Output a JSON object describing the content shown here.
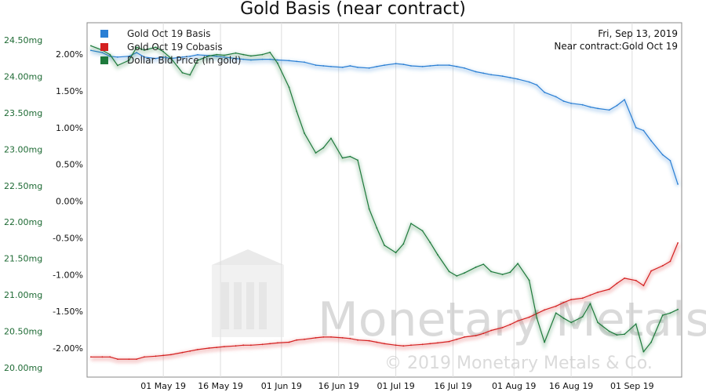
{
  "chart_data": {
    "type": "line",
    "title": "Gold Basis (near contract)",
    "info": {
      "date": "Fri, Sep 13, 2019",
      "contract": "Near contract:Gold Oct 19"
    },
    "x_dates": [
      "2019-04-12",
      "2019-04-15",
      "2019-04-17",
      "2019-04-19",
      "2019-04-22",
      "2019-04-24",
      "2019-04-26",
      "2019-04-29",
      "2019-05-01",
      "2019-05-03",
      "2019-05-06",
      "2019-05-08",
      "2019-05-10",
      "2019-05-13",
      "2019-05-15",
      "2019-05-17",
      "2019-05-20",
      "2019-05-22",
      "2019-05-24",
      "2019-05-27",
      "2019-05-29",
      "2019-05-31",
      "2019-06-03",
      "2019-06-05",
      "2019-06-07",
      "2019-06-10",
      "2019-06-12",
      "2019-06-14",
      "2019-06-17",
      "2019-06-19",
      "2019-06-21",
      "2019-06-24",
      "2019-06-26",
      "2019-06-28",
      "2019-07-01",
      "2019-07-03",
      "2019-07-05",
      "2019-07-08",
      "2019-07-10",
      "2019-07-12",
      "2019-07-15",
      "2019-07-17",
      "2019-07-19",
      "2019-07-22",
      "2019-07-24",
      "2019-07-26",
      "2019-07-29",
      "2019-07-31",
      "2019-08-02",
      "2019-08-05",
      "2019-08-07",
      "2019-08-09",
      "2019-08-12",
      "2019-08-14",
      "2019-08-16",
      "2019-08-19",
      "2019-08-21",
      "2019-08-23",
      "2019-08-26",
      "2019-08-28",
      "2019-08-30",
      "2019-09-02",
      "2019-09-04",
      "2019-09-06",
      "2019-09-09",
      "2019-09-11",
      "2019-09-13"
    ],
    "series": [
      {
        "name": "Gold Oct 19 Basis",
        "color": "#2a7fd4",
        "axis": "right",
        "unit": "%",
        "values": [
          2.05,
          2.02,
          1.97,
          1.96,
          1.97,
          2.02,
          1.96,
          1.94,
          1.96,
          1.94,
          1.96,
          1.97,
          1.99,
          1.98,
          1.97,
          1.96,
          1.94,
          1.93,
          1.92,
          1.93,
          1.93,
          1.92,
          1.91,
          1.9,
          1.89,
          1.85,
          1.84,
          1.83,
          1.82,
          1.84,
          1.82,
          1.81,
          1.83,
          1.85,
          1.87,
          1.86,
          1.84,
          1.83,
          1.84,
          1.85,
          1.85,
          1.83,
          1.81,
          1.76,
          1.74,
          1.72,
          1.7,
          1.68,
          1.66,
          1.62,
          1.58,
          1.48,
          1.42,
          1.36,
          1.33,
          1.31,
          1.28,
          1.26,
          1.24,
          1.3,
          1.38,
          1.0,
          0.96,
          0.82,
          0.63,
          0.55,
          0.23
        ]
      },
      {
        "name": "Gold Oct 19 Cobasis",
        "color": "#d42020",
        "axis": "right",
        "unit": "%",
        "values": [
          -2.12,
          -2.12,
          -2.12,
          -2.15,
          -2.15,
          -2.15,
          -2.12,
          -2.11,
          -2.1,
          -2.09,
          -2.06,
          -2.04,
          -2.02,
          -2.0,
          -1.99,
          -1.98,
          -1.97,
          -1.96,
          -1.96,
          -1.95,
          -1.94,
          -1.93,
          -1.92,
          -1.89,
          -1.88,
          -1.86,
          -1.85,
          -1.85,
          -1.86,
          -1.87,
          -1.89,
          -1.9,
          -1.92,
          -1.94,
          -1.96,
          -1.97,
          -1.96,
          -1.95,
          -1.94,
          -1.93,
          -1.91,
          -1.88,
          -1.85,
          -1.83,
          -1.8,
          -1.76,
          -1.72,
          -1.68,
          -1.63,
          -1.58,
          -1.53,
          -1.48,
          -1.43,
          -1.38,
          -1.34,
          -1.32,
          -1.28,
          -1.24,
          -1.2,
          -1.12,
          -1.05,
          -1.08,
          -1.15,
          -0.95,
          -0.88,
          -0.82,
          -0.57
        ]
      },
      {
        "name": "Dollar Bid Price (in gold)",
        "color": "#1e7a3c",
        "axis": "left",
        "unit": "mg",
        "values": [
          24.42,
          24.36,
          24.3,
          24.15,
          24.22,
          24.4,
          24.36,
          24.4,
          24.34,
          24.25,
          24.05,
          24.02,
          24.22,
          24.28,
          24.3,
          24.29,
          24.32,
          24.3,
          24.28,
          24.3,
          24.33,
          24.18,
          23.85,
          23.52,
          23.22,
          22.95,
          23.02,
          23.15,
          22.88,
          22.9,
          22.85,
          22.18,
          21.92,
          21.68,
          21.58,
          21.7,
          21.98,
          21.88,
          21.72,
          21.55,
          21.32,
          21.26,
          21.3,
          21.38,
          21.42,
          21.32,
          21.28,
          21.31,
          21.43,
          21.2,
          20.68,
          20.35,
          20.75,
          20.68,
          20.62,
          20.7,
          20.88,
          20.62,
          20.5,
          20.45,
          20.46,
          20.6,
          20.22,
          20.35,
          20.72,
          20.75,
          20.8
        ]
      }
    ],
    "y_left": {
      "min": 20.0,
      "max": 24.5,
      "ticks": [
        "20.00mg",
        "20.50mg",
        "21.00mg",
        "21.50mg",
        "22.00mg",
        "22.50mg",
        "23.00mg",
        "23.50mg",
        "24.00mg",
        "24.50mg"
      ]
    },
    "y_right": {
      "min": -2.0,
      "max": 2.0,
      "ticks": [
        "-2.00%",
        "-1.50%",
        "-1.00%",
        "-0.50%",
        "0.00%",
        "0.50%",
        "1.00%",
        "1.50%",
        "2.00%"
      ]
    },
    "x_ticks": [
      {
        "label": "01 May 19",
        "date": "2019-05-01"
      },
      {
        "label": "16 May 19",
        "date": "2019-05-16"
      },
      {
        "label": "01 Jun 19",
        "date": "2019-06-01"
      },
      {
        "label": "16 Jun 19",
        "date": "2019-06-16"
      },
      {
        "label": "01 Jul 19",
        "date": "2019-07-01"
      },
      {
        "label": "16 Jul 19",
        "date": "2019-07-16"
      },
      {
        "label": "01 Aug 19",
        "date": "2019-08-01"
      },
      {
        "label": "16 Aug 19",
        "date": "2019-08-16"
      },
      {
        "label": "01 Sep 19",
        "date": "2019-09-01"
      }
    ],
    "grid": "vertical",
    "legend_position": "top-left",
    "watermark": {
      "brand": "Monetary Metals",
      "copyright": "© 2019 Monetary Metals & Co."
    }
  }
}
